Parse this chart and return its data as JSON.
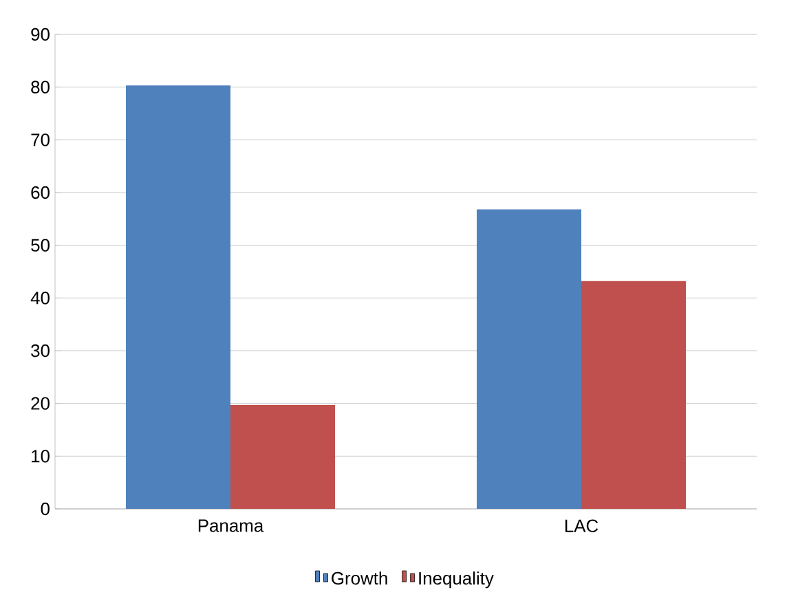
{
  "chart_data": {
    "type": "bar",
    "categories": [
      "Panama",
      "LAC"
    ],
    "series": [
      {
        "name": "Growth",
        "color": "#4f81bd",
        "values": [
          80.3,
          56.8
        ]
      },
      {
        "name": "Inequality",
        "color": "#c0504d",
        "values": [
          19.7,
          43.2
        ]
      }
    ],
    "ylim": [
      0,
      90
    ],
    "yticks": [
      0,
      10,
      20,
      30,
      40,
      50,
      60,
      70,
      80,
      90
    ],
    "grid": "y",
    "legend": "bottom"
  }
}
